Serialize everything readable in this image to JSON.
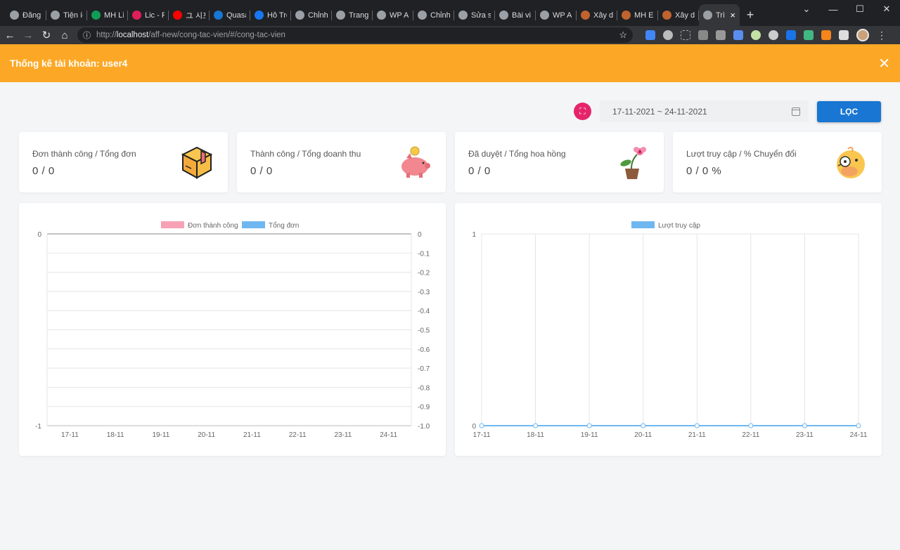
{
  "browser": {
    "tabs": [
      {
        "label": "Đăng",
        "icon": "globe-icon",
        "color": "#9aa0a6"
      },
      {
        "label": "Tiện íc",
        "icon": "puzzle-icon",
        "color": "#9aa0a6"
      },
      {
        "label": "MH Lì",
        "icon": "sheets-icon",
        "color": "#0f9d58"
      },
      {
        "label": "Lic - P",
        "icon": "slack-icon",
        "color": "#e01e5a"
      },
      {
        "label": "ユ 시포",
        "icon": "youtube-icon",
        "color": "#ff0000"
      },
      {
        "label": "Quasa",
        "icon": "quasar-icon",
        "color": "#1976d2"
      },
      {
        "label": "Hỗ Trợ",
        "icon": "facebook-icon",
        "color": "#1877f2"
      },
      {
        "label": "Chỉnh",
        "icon": "globe-icon",
        "color": "#9aa0a6"
      },
      {
        "label": "Trang",
        "icon": "globe-icon",
        "color": "#9aa0a6"
      },
      {
        "label": "WP A",
        "icon": "globe-icon",
        "color": "#9aa0a6"
      },
      {
        "label": "Chỉnh",
        "icon": "globe-icon",
        "color": "#9aa0a6"
      },
      {
        "label": "Sửa s",
        "icon": "globe-icon",
        "color": "#9aa0a6"
      },
      {
        "label": "Bài vi",
        "icon": "globe-icon",
        "color": "#9aa0a6"
      },
      {
        "label": "WP A",
        "icon": "globe-icon",
        "color": "#9aa0a6"
      },
      {
        "label": "Xây d",
        "icon": "book-icon",
        "color": "#c0632f"
      },
      {
        "label": "MH E",
        "icon": "book-icon",
        "color": "#c0632f"
      },
      {
        "label": "Xây d",
        "icon": "book-icon",
        "color": "#c0632f"
      },
      {
        "label": "Trì",
        "icon": "globe-icon",
        "color": "#9aa0a6",
        "active": true
      }
    ],
    "url_scheme": "http://",
    "url_host": "localhost",
    "url_path": "/aff-new/cong-tac-vien/#/cong-tac-vien"
  },
  "header": {
    "title": "Thống kê tài khoản: user4"
  },
  "filters": {
    "date_range": "17-11-2021 ~ 24-11-2021",
    "filter_button": "LỌC"
  },
  "cards": [
    {
      "label": "Đơn thành công / Tổng đơn",
      "value": "0 / 0",
      "icon": "box-icon"
    },
    {
      "label": "Thành công / Tổng doanh thu",
      "value": "0 / 0",
      "icon": "piggy-bank-icon"
    },
    {
      "label": "Đã duyệt / Tổng hoa hồng",
      "value": "0 / 0",
      "icon": "flower-pot-icon"
    },
    {
      "label": "Lượt truy cập / % Chuyển đổi",
      "value": "0 / 0 %",
      "icon": "duck-icon"
    }
  ],
  "chart_data": [
    {
      "type": "bar",
      "categories": [
        "17-11",
        "18-11",
        "19-11",
        "20-11",
        "21-11",
        "22-11",
        "23-11",
        "24-11"
      ],
      "series": [
        {
          "name": "Đơn thành công",
          "values": [
            0,
            0,
            0,
            0,
            0,
            0,
            0,
            0
          ],
          "color": "#f7a1b4"
        },
        {
          "name": "Tổng đơn",
          "values": [
            0,
            0,
            0,
            0,
            0,
            0,
            0,
            0
          ],
          "color": "#6fb7f0"
        }
      ],
      "ylim_left": [
        -1,
        0
      ],
      "ylim_right": [
        -1.0,
        0
      ],
      "y_ticks_left": [
        "0",
        "-1"
      ],
      "y_ticks_right": [
        "0",
        "-0.1",
        "-0.2",
        "-0.3",
        "-0.4",
        "-0.5",
        "-0.6",
        "-0.7",
        "-0.8",
        "-0.9",
        "-1.0"
      ],
      "legend": "top-center",
      "grid": true
    },
    {
      "type": "line",
      "categories": [
        "17-11",
        "18-11",
        "19-11",
        "20-11",
        "21-11",
        "22-11",
        "23-11",
        "24-11"
      ],
      "series": [
        {
          "name": "Lượt truy cập",
          "values": [
            0,
            0,
            0,
            0,
            0,
            0,
            0,
            0
          ],
          "color": "#6fb7f0"
        }
      ],
      "ylim": [
        0,
        1
      ],
      "y_ticks": [
        "1",
        "0"
      ],
      "legend": "top-center",
      "grid": true
    }
  ]
}
